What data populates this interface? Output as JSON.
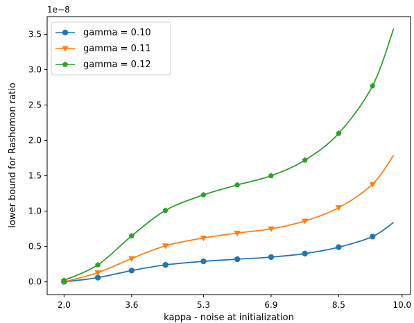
{
  "chart_data": {
    "type": "line",
    "xlabel": "kappa - noise at initialization",
    "ylabel": "lower bound for Rashomon ratio",
    "y_scale_label": "1e−8",
    "x_ticks": [
      "2.0",
      "3.6",
      "5.3",
      "6.9",
      "8.5",
      "10.0"
    ],
    "x_tick_values": [
      2.0,
      3.6,
      5.3,
      6.9,
      8.5,
      10.0
    ],
    "y_ticks": [
      "0.0",
      "0.5",
      "1.0",
      "1.5",
      "2.0",
      "2.5",
      "3.0",
      "3.5"
    ],
    "y_tick_values": [
      0.0,
      0.5,
      1.0,
      1.5,
      2.0,
      2.5,
      3.0,
      3.5
    ],
    "xlim": [
      1.6,
      10.2
    ],
    "ylim": [
      -0.18,
      3.75
    ],
    "grid": false,
    "legend_position": "upper-left",
    "markers_x": [
      2.0,
      2.8,
      3.6,
      4.4,
      5.3,
      6.1,
      6.9,
      7.7,
      8.5,
      9.3
    ],
    "series": [
      {
        "name": "gamma = 0.10",
        "color": "#1f77b4",
        "marker": "circle",
        "values": [
          0.0,
          0.06,
          0.16,
          0.24,
          0.29,
          0.32,
          0.35,
          0.4,
          0.49,
          0.64
        ],
        "end": [
          9.8,
          0.84
        ]
      },
      {
        "name": "gamma = 0.11",
        "color": "#ff7f0e",
        "marker": "triangle-down",
        "values": [
          0.0,
          0.13,
          0.33,
          0.51,
          0.62,
          0.69,
          0.75,
          0.86,
          1.05,
          1.38
        ],
        "end": [
          9.8,
          1.79
        ]
      },
      {
        "name": "gamma = 0.12",
        "color": "#2ca02c",
        "marker": "pentagon",
        "values": [
          0.02,
          0.24,
          0.65,
          1.01,
          1.23,
          1.37,
          1.5,
          1.72,
          2.1,
          2.77
        ],
        "end": [
          9.8,
          3.58
        ]
      }
    ]
  }
}
